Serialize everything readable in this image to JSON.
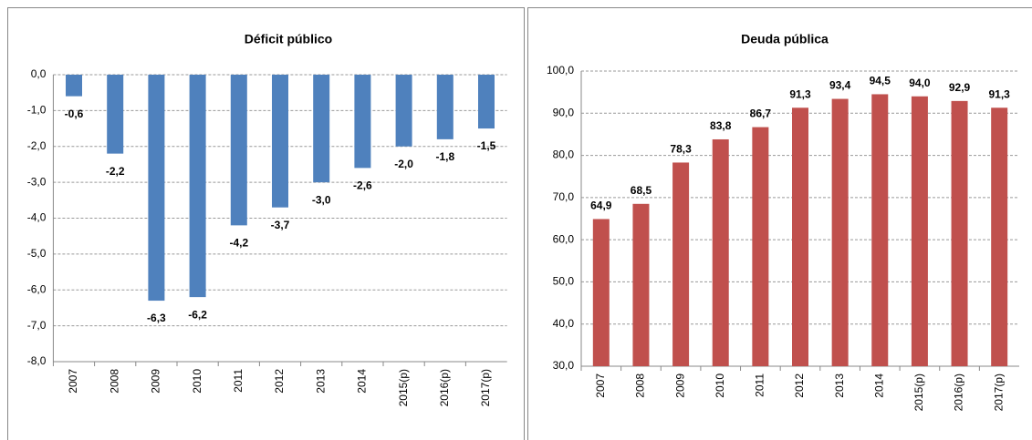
{
  "chart_data": [
    {
      "type": "bar",
      "title": "Déficit público",
      "categories": [
        "2007",
        "2008",
        "2009",
        "2010",
        "2011",
        "2012",
        "2013",
        "2014",
        "2015(p)",
        "2016(p)",
        "2017(p)"
      ],
      "values": [
        -0.6,
        -2.2,
        -6.3,
        -6.2,
        -4.2,
        -3.7,
        -3.0,
        -2.6,
        -2.0,
        -1.8,
        -1.5
      ],
      "value_labels": [
        "-0,6",
        "-2,2",
        "-6,3",
        "-6,2",
        "-4,2",
        "-3,7",
        "-3,0",
        "-2,6",
        "-2,0",
        "-1,8",
        "-1,5"
      ],
      "color": "#4f81bd",
      "ylim": [
        -8,
        0
      ],
      "yticks": [
        {
          "value": 0,
          "label": "0,0"
        },
        {
          "value": -1,
          "label": "-1,0"
        },
        {
          "value": -2,
          "label": "-2,0"
        },
        {
          "value": -3,
          "label": "-3,0"
        },
        {
          "value": -4,
          "label": "-4,0"
        },
        {
          "value": -5,
          "label": "-5,0"
        },
        {
          "value": -6,
          "label": "-6,0"
        },
        {
          "value": -7,
          "label": "-7,0"
        },
        {
          "value": -8,
          "label": "-8,0"
        }
      ],
      "grid": true
    },
    {
      "type": "bar",
      "title": "Deuda pública",
      "categories": [
        "2007",
        "2008",
        "2009",
        "2010",
        "2011",
        "2012",
        "2013",
        "2014",
        "2015(p)",
        "2016(p)",
        "2017(p)"
      ],
      "values": [
        64.9,
        68.5,
        78.3,
        83.8,
        86.7,
        91.3,
        93.4,
        94.5,
        94.0,
        92.9,
        91.3
      ],
      "value_labels": [
        "64,9",
        "68,5",
        "78,3",
        "83,8",
        "86,7",
        "91,3",
        "93,4",
        "94,5",
        "94,0",
        "92,9",
        "91,3"
      ],
      "color": "#c0504d",
      "ylim": [
        30,
        100
      ],
      "yticks": [
        {
          "value": 100,
          "label": "100,0"
        },
        {
          "value": 90,
          "label": "90,0"
        },
        {
          "value": 80,
          "label": "80,0"
        },
        {
          "value": 70,
          "label": "70,0"
        },
        {
          "value": 60,
          "label": "60,0"
        },
        {
          "value": 50,
          "label": "50,0"
        },
        {
          "value": 40,
          "label": "40,0"
        },
        {
          "value": 30,
          "label": "30,0"
        }
      ],
      "grid": true
    }
  ]
}
